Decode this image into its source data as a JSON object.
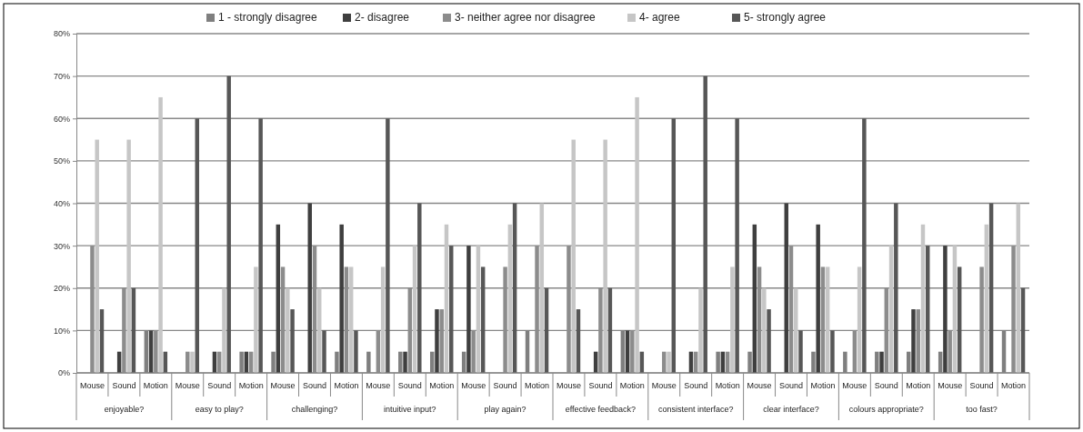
{
  "chart_data": {
    "type": "bar",
    "categories": [
      "Mouse",
      "Sound",
      "Motion",
      "Mouse",
      "Sound",
      "Motion",
      "Mouse",
      "Sound",
      "Motion",
      "Mouse",
      "Sound",
      "Motion",
      "Mouse",
      "Sound",
      "Motion",
      "Mouse",
      "Sound",
      "Motion",
      "Mouse",
      "Sound",
      "Motion",
      "Mouse",
      "Sound",
      "Motion",
      "Mouse",
      "Sound",
      "Motion",
      "Mouse",
      "Sound",
      "Motion"
    ],
    "annotations": [
      "enjoyable?",
      "easy to play?",
      "challenging?",
      "intuitive input?",
      "play again?",
      "effective feedback?",
      "consistent interface?",
      "clear interface?",
      "colours appropriate?",
      "too fast?"
    ],
    "series": [
      {
        "name": "1 - strongly disagree",
        "color": "#7f7f7f",
        "values": [
          0,
          0,
          10,
          0,
          0,
          5,
          5,
          0,
          5,
          5,
          5,
          5,
          5,
          0,
          10,
          0,
          0,
          10,
          0,
          0,
          5,
          5,
          0,
          5,
          5,
          5,
          5,
          5,
          0,
          10
        ]
      },
      {
        "name": "2- disagree",
        "color": "#3f3f3f",
        "values": [
          0,
          5,
          10,
          0,
          5,
          5,
          35,
          40,
          35,
          0,
          5,
          15,
          30,
          0,
          0,
          0,
          5,
          10,
          0,
          5,
          5,
          35,
          40,
          35,
          0,
          5,
          15,
          30,
          0,
          0
        ]
      },
      {
        "name": "3- neither agree nor disagree",
        "color": "#8c8c8c",
        "values": [
          30,
          20,
          10,
          5,
          5,
          5,
          25,
          30,
          25,
          10,
          20,
          15,
          10,
          25,
          30,
          30,
          20,
          10,
          5,
          5,
          5,
          25,
          30,
          25,
          10,
          20,
          15,
          10,
          25,
          30
        ]
      },
      {
        "name": "4- agree",
        "color": "#c6c6c6",
        "values": [
          55,
          55,
          65,
          5,
          20,
          25,
          20,
          20,
          25,
          25,
          30,
          35,
          30,
          35,
          40,
          55,
          55,
          65,
          5,
          20,
          25,
          20,
          20,
          25,
          25,
          30,
          35,
          30,
          35,
          40
        ]
      },
      {
        "name": "5- strongly agree",
        "color": "#575757",
        "values": [
          15,
          20,
          5,
          60,
          70,
          60,
          15,
          10,
          10,
          60,
          40,
          30,
          25,
          40,
          20,
          15,
          20,
          5,
          60,
          70,
          60,
          15,
          10,
          10,
          60,
          40,
          30,
          25,
          40,
          20
        ]
      }
    ],
    "ylim": [
      0,
      80
    ],
    "yticks": [
      {
        "value": 0,
        "label": "0%"
      },
      {
        "value": 10,
        "label": "10%"
      },
      {
        "value": 20,
        "label": "20%"
      },
      {
        "value": 30,
        "label": "30%"
      },
      {
        "value": 40,
        "label": "40%"
      },
      {
        "value": 50,
        "label": "50%"
      },
      {
        "value": 60,
        "label": "60%"
      },
      {
        "value": 70,
        "label": "70%"
      },
      {
        "value": 80,
        "label": "80%"
      }
    ],
    "grid": "y",
    "legend": "top"
  }
}
